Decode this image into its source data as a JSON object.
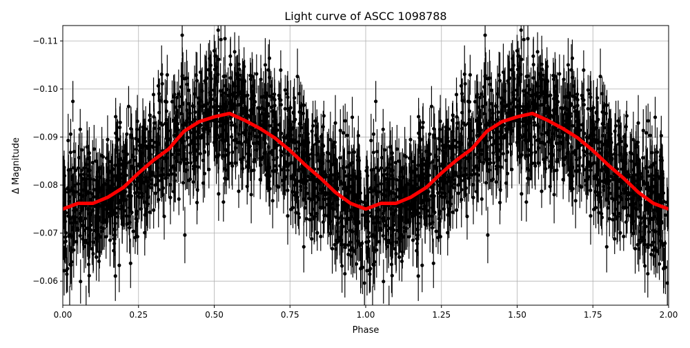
{
  "chart_data": {
    "type": "scatter",
    "title": "Light curve of ASCC 1098788",
    "xlabel": "Phase",
    "ylabel": "Δ Magnitude",
    "xlim": [
      0,
      2
    ],
    "ylim": [
      -0.055,
      -0.1132
    ],
    "y_inverted": true,
    "grid": true,
    "x_ticks": [
      "0.00",
      "0.25",
      "0.50",
      "0.75",
      "1.00",
      "1.25",
      "1.50",
      "1.75",
      "2.00"
    ],
    "x_tick_values": [
      0,
      0.25,
      0.5,
      0.75,
      1.0,
      1.25,
      1.5,
      1.75,
      2.0
    ],
    "y_ticks": [
      "−0.11",
      "−0.10",
      "−0.09",
      "−0.08",
      "−0.07",
      "−0.06"
    ],
    "y_tick_values": [
      -0.11,
      -0.1,
      -0.09,
      -0.08,
      -0.07,
      -0.06
    ],
    "observations": {
      "style": "black points with error bars",
      "color": "#000000"
    },
    "binned_curve": {
      "color": "#ff0000",
      "x": [
        0,
        0.05,
        0.1,
        0.15,
        0.2,
        0.25,
        0.3,
        0.35,
        0.4,
        0.45,
        0.5,
        0.55,
        0.6,
        0.65,
        0.7,
        0.75,
        0.8,
        0.85,
        0.9,
        0.95,
        1.0,
        1.05,
        1.1,
        1.15,
        1.2,
        1.25,
        1.3,
        1.35,
        1.4,
        1.45,
        1.5,
        1.55,
        1.6,
        1.65,
        1.7,
        1.75,
        1.8,
        1.85,
        1.9,
        1.95,
        2.0
      ],
      "y": [
        -0.075,
        -0.0762,
        -0.0762,
        -0.0775,
        -0.0795,
        -0.0825,
        -0.0852,
        -0.0875,
        -0.0912,
        -0.0932,
        -0.0942,
        -0.0949,
        -0.0935,
        -0.0918,
        -0.0898,
        -0.0872,
        -0.0842,
        -0.0815,
        -0.0785,
        -0.0762,
        -0.075,
        -0.0762,
        -0.0762,
        -0.0775,
        -0.0795,
        -0.0825,
        -0.0852,
        -0.0875,
        -0.0912,
        -0.0932,
        -0.0942,
        -0.0949,
        -0.0935,
        -0.0918,
        -0.0898,
        -0.0872,
        -0.0842,
        -0.0815,
        -0.0785,
        -0.0762,
        -0.075
      ]
    }
  }
}
